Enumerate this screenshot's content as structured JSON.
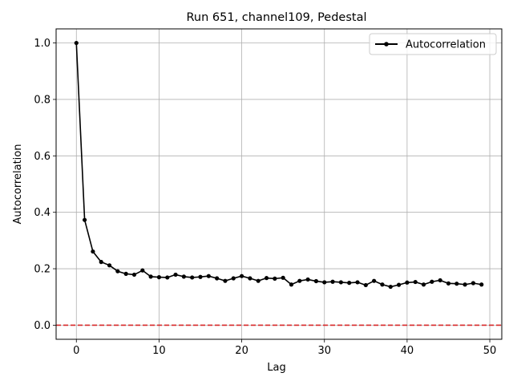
{
  "chart_data": {
    "type": "line",
    "title": "Run 651, channel109, Pedestal",
    "xlabel": "Lag",
    "ylabel": "Autocorrelation",
    "xlim": [
      -2.45,
      51.45
    ],
    "ylim": [
      -0.05,
      1.05
    ],
    "xticks": [
      0,
      10,
      20,
      30,
      40,
      50
    ],
    "yticks": [
      0.0,
      0.2,
      0.4,
      0.6,
      0.8,
      1.0
    ],
    "xtick_labels": [
      "0",
      "10",
      "20",
      "30",
      "40",
      "50"
    ],
    "ytick_labels": [
      "0.0",
      "0.2",
      "0.4",
      "0.6",
      "0.8",
      "1.0"
    ],
    "grid": true,
    "legend": {
      "position": "top-right",
      "entries": [
        "Autocorrelation"
      ]
    },
    "reference_line": {
      "y": 0.0,
      "color": "#d62728",
      "style": "dashed"
    },
    "series": [
      {
        "name": "Autocorrelation",
        "color": "#000000",
        "marker": "circle",
        "x": [
          0,
          1,
          2,
          3,
          4,
          5,
          6,
          7,
          8,
          9,
          10,
          11,
          12,
          13,
          14,
          15,
          16,
          17,
          18,
          19,
          20,
          21,
          22,
          23,
          24,
          25,
          26,
          27,
          28,
          29,
          30,
          31,
          32,
          33,
          34,
          35,
          36,
          37,
          38,
          39,
          40,
          41,
          42,
          43,
          44,
          45,
          46,
          47,
          48,
          49
        ],
        "y": [
          1.0,
          0.373,
          0.261,
          0.224,
          0.212,
          0.191,
          0.182,
          0.179,
          0.194,
          0.172,
          0.17,
          0.169,
          0.179,
          0.172,
          0.169,
          0.171,
          0.174,
          0.166,
          0.157,
          0.166,
          0.174,
          0.166,
          0.157,
          0.167,
          0.165,
          0.168,
          0.144,
          0.157,
          0.162,
          0.156,
          0.152,
          0.154,
          0.152,
          0.15,
          0.152,
          0.142,
          0.157,
          0.144,
          0.136,
          0.143,
          0.151,
          0.153,
          0.144,
          0.154,
          0.159,
          0.148,
          0.147,
          0.144,
          0.149,
          0.144
        ]
      }
    ]
  }
}
